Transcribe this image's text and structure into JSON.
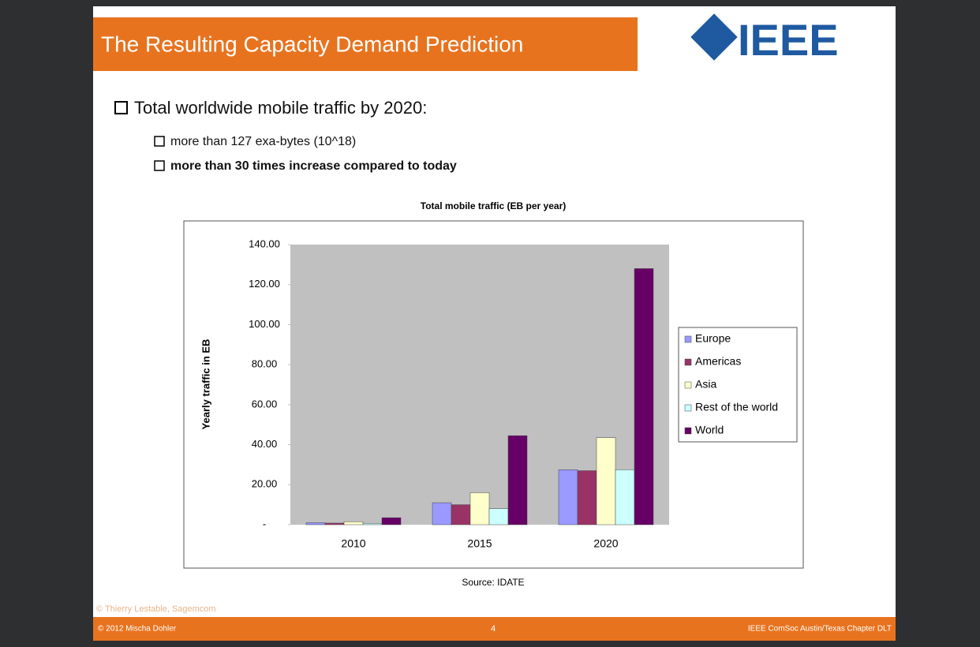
{
  "slide": {
    "header": "The Resulting Capacity Demand Prediction",
    "logo": "IEEE",
    "bullet": "Total worldwide mobile traffic by 2020:",
    "sub_bullets": [
      "more than 127 exa-bytes (10^18)",
      "more than 30 times increase compared to today"
    ],
    "source": "Source: IDATE",
    "credit": "© Thierry Lestable, Sagemcom",
    "footer_left": "© 2012 Mischa Dohler",
    "footer_page": "4",
    "footer_right": "IEEE ComSoc Austin/Texas Chapter DLT"
  },
  "chart_data": {
    "type": "bar",
    "title": "Total mobile traffic (EB per year)",
    "y_label": "Yearly traffic in EB",
    "categories": [
      "2010",
      "2015",
      "2020"
    ],
    "series": [
      {
        "name": "Europe",
        "color": "#9999ff",
        "values": [
          1,
          11,
          27.5
        ]
      },
      {
        "name": "Americas",
        "color": "#993366",
        "values": [
          0.8,
          10,
          27
        ]
      },
      {
        "name": "Asia",
        "color": "#ffffcc",
        "values": [
          1.5,
          16,
          43.5
        ]
      },
      {
        "name": "Rest of the world",
        "color": "#ccffff",
        "values": [
          0.7,
          8,
          27.5
        ]
      },
      {
        "name": "World",
        "color": "#660066",
        "values": [
          3.5,
          44.5,
          128
        ]
      }
    ],
    "ylim": [
      0,
      140
    ],
    "yticks": [
      {
        "value": 0,
        "label": "-"
      },
      {
        "value": 20,
        "label": "20.00"
      },
      {
        "value": 40,
        "label": "40.00"
      },
      {
        "value": 60,
        "label": "60.00"
      },
      {
        "value": 80,
        "label": "80.00"
      },
      {
        "value": 100,
        "label": "100.00"
      },
      {
        "value": 120,
        "label": "120.00"
      },
      {
        "value": 140,
        "label": "140.00"
      }
    ],
    "legend": "right"
  }
}
